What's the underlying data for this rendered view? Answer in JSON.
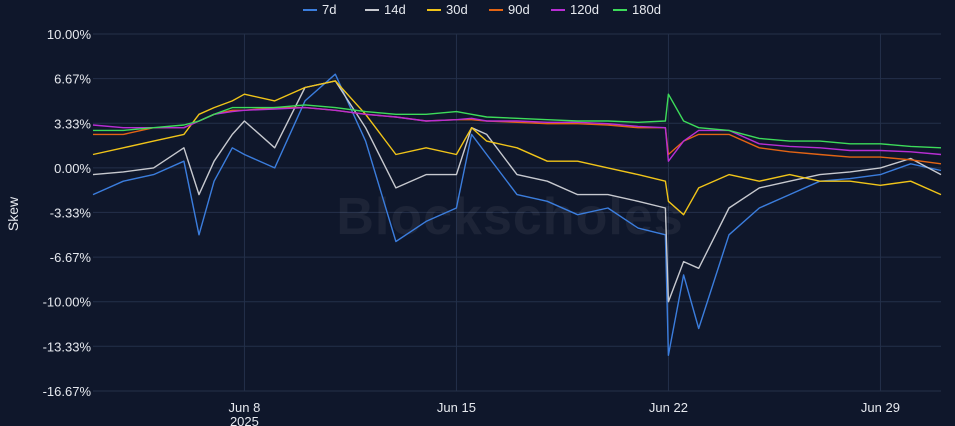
{
  "chart_data": {
    "type": "line",
    "ylabel": "Skew",
    "watermark": "Blockscholes",
    "ylim": [
      -16.67,
      10.0
    ],
    "yticks": [
      {
        "value": 10.0,
        "label": "10.00%"
      },
      {
        "value": 6.67,
        "label": "6.67%"
      },
      {
        "value": 3.33,
        "label": "3.33%"
      },
      {
        "value": 0.0,
        "label": "0.00%"
      },
      {
        "value": -3.33,
        "label": "-3.33%"
      },
      {
        "value": -6.67,
        "label": "-6.67%"
      },
      {
        "value": -10.0,
        "label": "-10.00%"
      },
      {
        "value": -13.33,
        "label": "-13.33%"
      },
      {
        "value": -16.67,
        "label": "-16.67%"
      }
    ],
    "xlim": [
      "2025-06-03",
      "2025-07-01"
    ],
    "xticks": [
      {
        "date": "2025-06-08",
        "label": "Jun 8",
        "sublabel": "2025"
      },
      {
        "date": "2025-06-15",
        "label": "Jun 15",
        "sublabel": ""
      },
      {
        "date": "2025-06-22",
        "label": "Jun 22",
        "sublabel": ""
      },
      {
        "date": "2025-06-29",
        "label": "Jun 29",
        "sublabel": ""
      }
    ],
    "grid": true,
    "legend_position": "top",
    "series": [
      {
        "name": "7d",
        "color": "#3b7ddd",
        "points": [
          [
            "2025-06-03",
            -2.0
          ],
          [
            "2025-06-04",
            -1.0
          ],
          [
            "2025-06-05",
            -0.5
          ],
          [
            "2025-06-06",
            0.5
          ],
          [
            "2025-06-06.5",
            -5.0
          ],
          [
            "2025-06-07",
            -1.0
          ],
          [
            "2025-06-07.6",
            1.5
          ],
          [
            "2025-06-08",
            1.0
          ],
          [
            "2025-06-09",
            0.0
          ],
          [
            "2025-06-10",
            5.0
          ],
          [
            "2025-06-11",
            7.0
          ],
          [
            "2025-06-12",
            2.0
          ],
          [
            "2025-06-13",
            -5.5
          ],
          [
            "2025-06-14",
            -4.0
          ],
          [
            "2025-06-15",
            -3.0
          ],
          [
            "2025-06-15.5",
            2.5
          ],
          [
            "2025-06-16",
            1.0
          ],
          [
            "2025-06-17",
            -2.0
          ],
          [
            "2025-06-18",
            -2.5
          ],
          [
            "2025-06-19",
            -3.5
          ],
          [
            "2025-06-20",
            -3.0
          ],
          [
            "2025-06-21",
            -4.5
          ],
          [
            "2025-06-21.9",
            -5.0
          ],
          [
            "2025-06-22",
            -14.0
          ],
          [
            "2025-06-22.5",
            -8.0
          ],
          [
            "2025-06-23",
            -12.0
          ],
          [
            "2025-06-24",
            -5.0
          ],
          [
            "2025-06-25",
            -3.0
          ],
          [
            "2025-06-26",
            -2.0
          ],
          [
            "2025-06-27",
            -1.0
          ],
          [
            "2025-06-28",
            -0.8
          ],
          [
            "2025-06-29",
            -0.5
          ],
          [
            "2025-06-30",
            0.3
          ],
          [
            "2025-07-01",
            -0.2
          ]
        ]
      },
      {
        "name": "14d",
        "color": "#c7c9cf",
        "points": [
          [
            "2025-06-03",
            -0.5
          ],
          [
            "2025-06-04",
            -0.3
          ],
          [
            "2025-06-05",
            0.0
          ],
          [
            "2025-06-06",
            1.5
          ],
          [
            "2025-06-06.5",
            -2.0
          ],
          [
            "2025-06-07",
            0.5
          ],
          [
            "2025-06-07.6",
            2.5
          ],
          [
            "2025-06-08",
            3.5
          ],
          [
            "2025-06-09",
            1.5
          ],
          [
            "2025-06-10",
            6.0
          ],
          [
            "2025-06-11",
            6.5
          ],
          [
            "2025-06-12",
            3.0
          ],
          [
            "2025-06-13",
            -1.5
          ],
          [
            "2025-06-14",
            -0.5
          ],
          [
            "2025-06-15",
            -0.5
          ],
          [
            "2025-06-15.5",
            3.0
          ],
          [
            "2025-06-16",
            2.5
          ],
          [
            "2025-06-17",
            -0.5
          ],
          [
            "2025-06-18",
            -1.0
          ],
          [
            "2025-06-19",
            -2.0
          ],
          [
            "2025-06-20",
            -2.0
          ],
          [
            "2025-06-21",
            -2.5
          ],
          [
            "2025-06-21.9",
            -3.0
          ],
          [
            "2025-06-22",
            -10.0
          ],
          [
            "2025-06-22.5",
            -7.0
          ],
          [
            "2025-06-23",
            -7.5
          ],
          [
            "2025-06-24",
            -3.0
          ],
          [
            "2025-06-25",
            -1.5
          ],
          [
            "2025-06-26",
            -1.0
          ],
          [
            "2025-06-27",
            -0.5
          ],
          [
            "2025-06-28",
            -0.3
          ],
          [
            "2025-06-29",
            0.0
          ],
          [
            "2025-06-30",
            0.7
          ],
          [
            "2025-07-01",
            -0.5
          ]
        ]
      },
      {
        "name": "30d",
        "color": "#f0c419",
        "points": [
          [
            "2025-06-03",
            1.0
          ],
          [
            "2025-06-04",
            1.5
          ],
          [
            "2025-06-05",
            2.0
          ],
          [
            "2025-06-06",
            2.5
          ],
          [
            "2025-06-06.5",
            4.0
          ],
          [
            "2025-06-07",
            4.5
          ],
          [
            "2025-06-07.6",
            5.0
          ],
          [
            "2025-06-08",
            5.5
          ],
          [
            "2025-06-09",
            5.0
          ],
          [
            "2025-06-10",
            6.0
          ],
          [
            "2025-06-11",
            6.5
          ],
          [
            "2025-06-12",
            4.0
          ],
          [
            "2025-06-13",
            1.0
          ],
          [
            "2025-06-14",
            1.5
          ],
          [
            "2025-06-15",
            1.0
          ],
          [
            "2025-06-15.5",
            3.0
          ],
          [
            "2025-06-16",
            2.0
          ],
          [
            "2025-06-17",
            1.5
          ],
          [
            "2025-06-18",
            0.5
          ],
          [
            "2025-06-19",
            0.5
          ],
          [
            "2025-06-20",
            0.0
          ],
          [
            "2025-06-21",
            -0.5
          ],
          [
            "2025-06-21.9",
            -1.0
          ],
          [
            "2025-06-22",
            -2.5
          ],
          [
            "2025-06-22.5",
            -3.5
          ],
          [
            "2025-06-23",
            -1.5
          ],
          [
            "2025-06-24",
            -0.5
          ],
          [
            "2025-06-25",
            -1.0
          ],
          [
            "2025-06-26",
            -0.5
          ],
          [
            "2025-06-27",
            -1.0
          ],
          [
            "2025-06-28",
            -1.0
          ],
          [
            "2025-06-29",
            -1.3
          ],
          [
            "2025-06-30",
            -1.0
          ],
          [
            "2025-07-01",
            -2.0
          ]
        ]
      },
      {
        "name": "90d",
        "color": "#e36414",
        "points": [
          [
            "2025-06-03",
            2.5
          ],
          [
            "2025-06-04",
            2.5
          ],
          [
            "2025-06-05",
            3.0
          ],
          [
            "2025-06-06",
            3.0
          ],
          [
            "2025-06-06.5",
            3.5
          ],
          [
            "2025-06-07",
            4.0
          ],
          [
            "2025-06-07.6",
            4.3
          ],
          [
            "2025-06-08",
            4.3
          ],
          [
            "2025-06-09",
            4.5
          ],
          [
            "2025-06-10",
            4.5
          ],
          [
            "2025-06-11",
            4.3
          ],
          [
            "2025-06-12",
            4.0
          ],
          [
            "2025-06-13",
            3.8
          ],
          [
            "2025-06-14",
            3.5
          ],
          [
            "2025-06-15",
            3.6
          ],
          [
            "2025-06-15.5",
            3.6
          ],
          [
            "2025-06-16",
            3.5
          ],
          [
            "2025-06-17",
            3.4
          ],
          [
            "2025-06-18",
            3.3
          ],
          [
            "2025-06-19",
            3.3
          ],
          [
            "2025-06-20",
            3.2
          ],
          [
            "2025-06-21",
            3.0
          ],
          [
            "2025-06-21.9",
            3.0
          ],
          [
            "2025-06-22",
            1.0
          ],
          [
            "2025-06-22.5",
            2.0
          ],
          [
            "2025-06-23",
            2.5
          ],
          [
            "2025-06-24",
            2.5
          ],
          [
            "2025-06-25",
            1.5
          ],
          [
            "2025-06-26",
            1.2
          ],
          [
            "2025-06-27",
            1.0
          ],
          [
            "2025-06-28",
            0.8
          ],
          [
            "2025-06-29",
            0.8
          ],
          [
            "2025-06-30",
            0.6
          ],
          [
            "2025-07-01",
            0.3
          ]
        ]
      },
      {
        "name": "120d",
        "color": "#b82ed4",
        "points": [
          [
            "2025-06-03",
            3.2
          ],
          [
            "2025-06-04",
            3.0
          ],
          [
            "2025-06-05",
            3.0
          ],
          [
            "2025-06-06",
            3.0
          ],
          [
            "2025-06-06.5",
            3.5
          ],
          [
            "2025-06-07",
            4.0
          ],
          [
            "2025-06-07.6",
            4.2
          ],
          [
            "2025-06-08",
            4.3
          ],
          [
            "2025-06-09",
            4.4
          ],
          [
            "2025-06-10",
            4.5
          ],
          [
            "2025-06-11",
            4.3
          ],
          [
            "2025-06-12",
            4.0
          ],
          [
            "2025-06-13",
            3.8
          ],
          [
            "2025-06-14",
            3.5
          ],
          [
            "2025-06-15",
            3.6
          ],
          [
            "2025-06-15.5",
            3.7
          ],
          [
            "2025-06-16",
            3.5
          ],
          [
            "2025-06-17",
            3.5
          ],
          [
            "2025-06-18",
            3.4
          ],
          [
            "2025-06-19",
            3.4
          ],
          [
            "2025-06-20",
            3.3
          ],
          [
            "2025-06-21",
            3.1
          ],
          [
            "2025-06-21.9",
            3.0
          ],
          [
            "2025-06-22",
            0.5
          ],
          [
            "2025-06-22.5",
            2.0
          ],
          [
            "2025-06-23",
            2.8
          ],
          [
            "2025-06-24",
            2.8
          ],
          [
            "2025-06-25",
            1.8
          ],
          [
            "2025-06-26",
            1.6
          ],
          [
            "2025-06-27",
            1.5
          ],
          [
            "2025-06-28",
            1.3
          ],
          [
            "2025-06-29",
            1.3
          ],
          [
            "2025-06-30",
            1.2
          ],
          [
            "2025-07-01",
            1.0
          ]
        ]
      },
      {
        "name": "180d",
        "color": "#3ddc5a",
        "points": [
          [
            "2025-06-03",
            2.8
          ],
          [
            "2025-06-04",
            2.8
          ],
          [
            "2025-06-05",
            3.0
          ],
          [
            "2025-06-06",
            3.2
          ],
          [
            "2025-06-06.5",
            3.5
          ],
          [
            "2025-06-07",
            4.0
          ],
          [
            "2025-06-07.6",
            4.5
          ],
          [
            "2025-06-08",
            4.5
          ],
          [
            "2025-06-09",
            4.5
          ],
          [
            "2025-06-10",
            4.7
          ],
          [
            "2025-06-11",
            4.5
          ],
          [
            "2025-06-12",
            4.2
          ],
          [
            "2025-06-13",
            4.0
          ],
          [
            "2025-06-14",
            4.0
          ],
          [
            "2025-06-15",
            4.2
          ],
          [
            "2025-06-15.5",
            4.0
          ],
          [
            "2025-06-16",
            3.8
          ],
          [
            "2025-06-17",
            3.7
          ],
          [
            "2025-06-18",
            3.6
          ],
          [
            "2025-06-19",
            3.5
          ],
          [
            "2025-06-20",
            3.5
          ],
          [
            "2025-06-21",
            3.4
          ],
          [
            "2025-06-21.9",
            3.5
          ],
          [
            "2025-06-22",
            5.5
          ],
          [
            "2025-06-22.5",
            3.5
          ],
          [
            "2025-06-23",
            3.0
          ],
          [
            "2025-06-24",
            2.8
          ],
          [
            "2025-06-25",
            2.2
          ],
          [
            "2025-06-26",
            2.0
          ],
          [
            "2025-06-27",
            2.0
          ],
          [
            "2025-06-28",
            1.8
          ],
          [
            "2025-06-29",
            1.8
          ],
          [
            "2025-06-30",
            1.6
          ],
          [
            "2025-07-01",
            1.5
          ]
        ]
      }
    ]
  }
}
